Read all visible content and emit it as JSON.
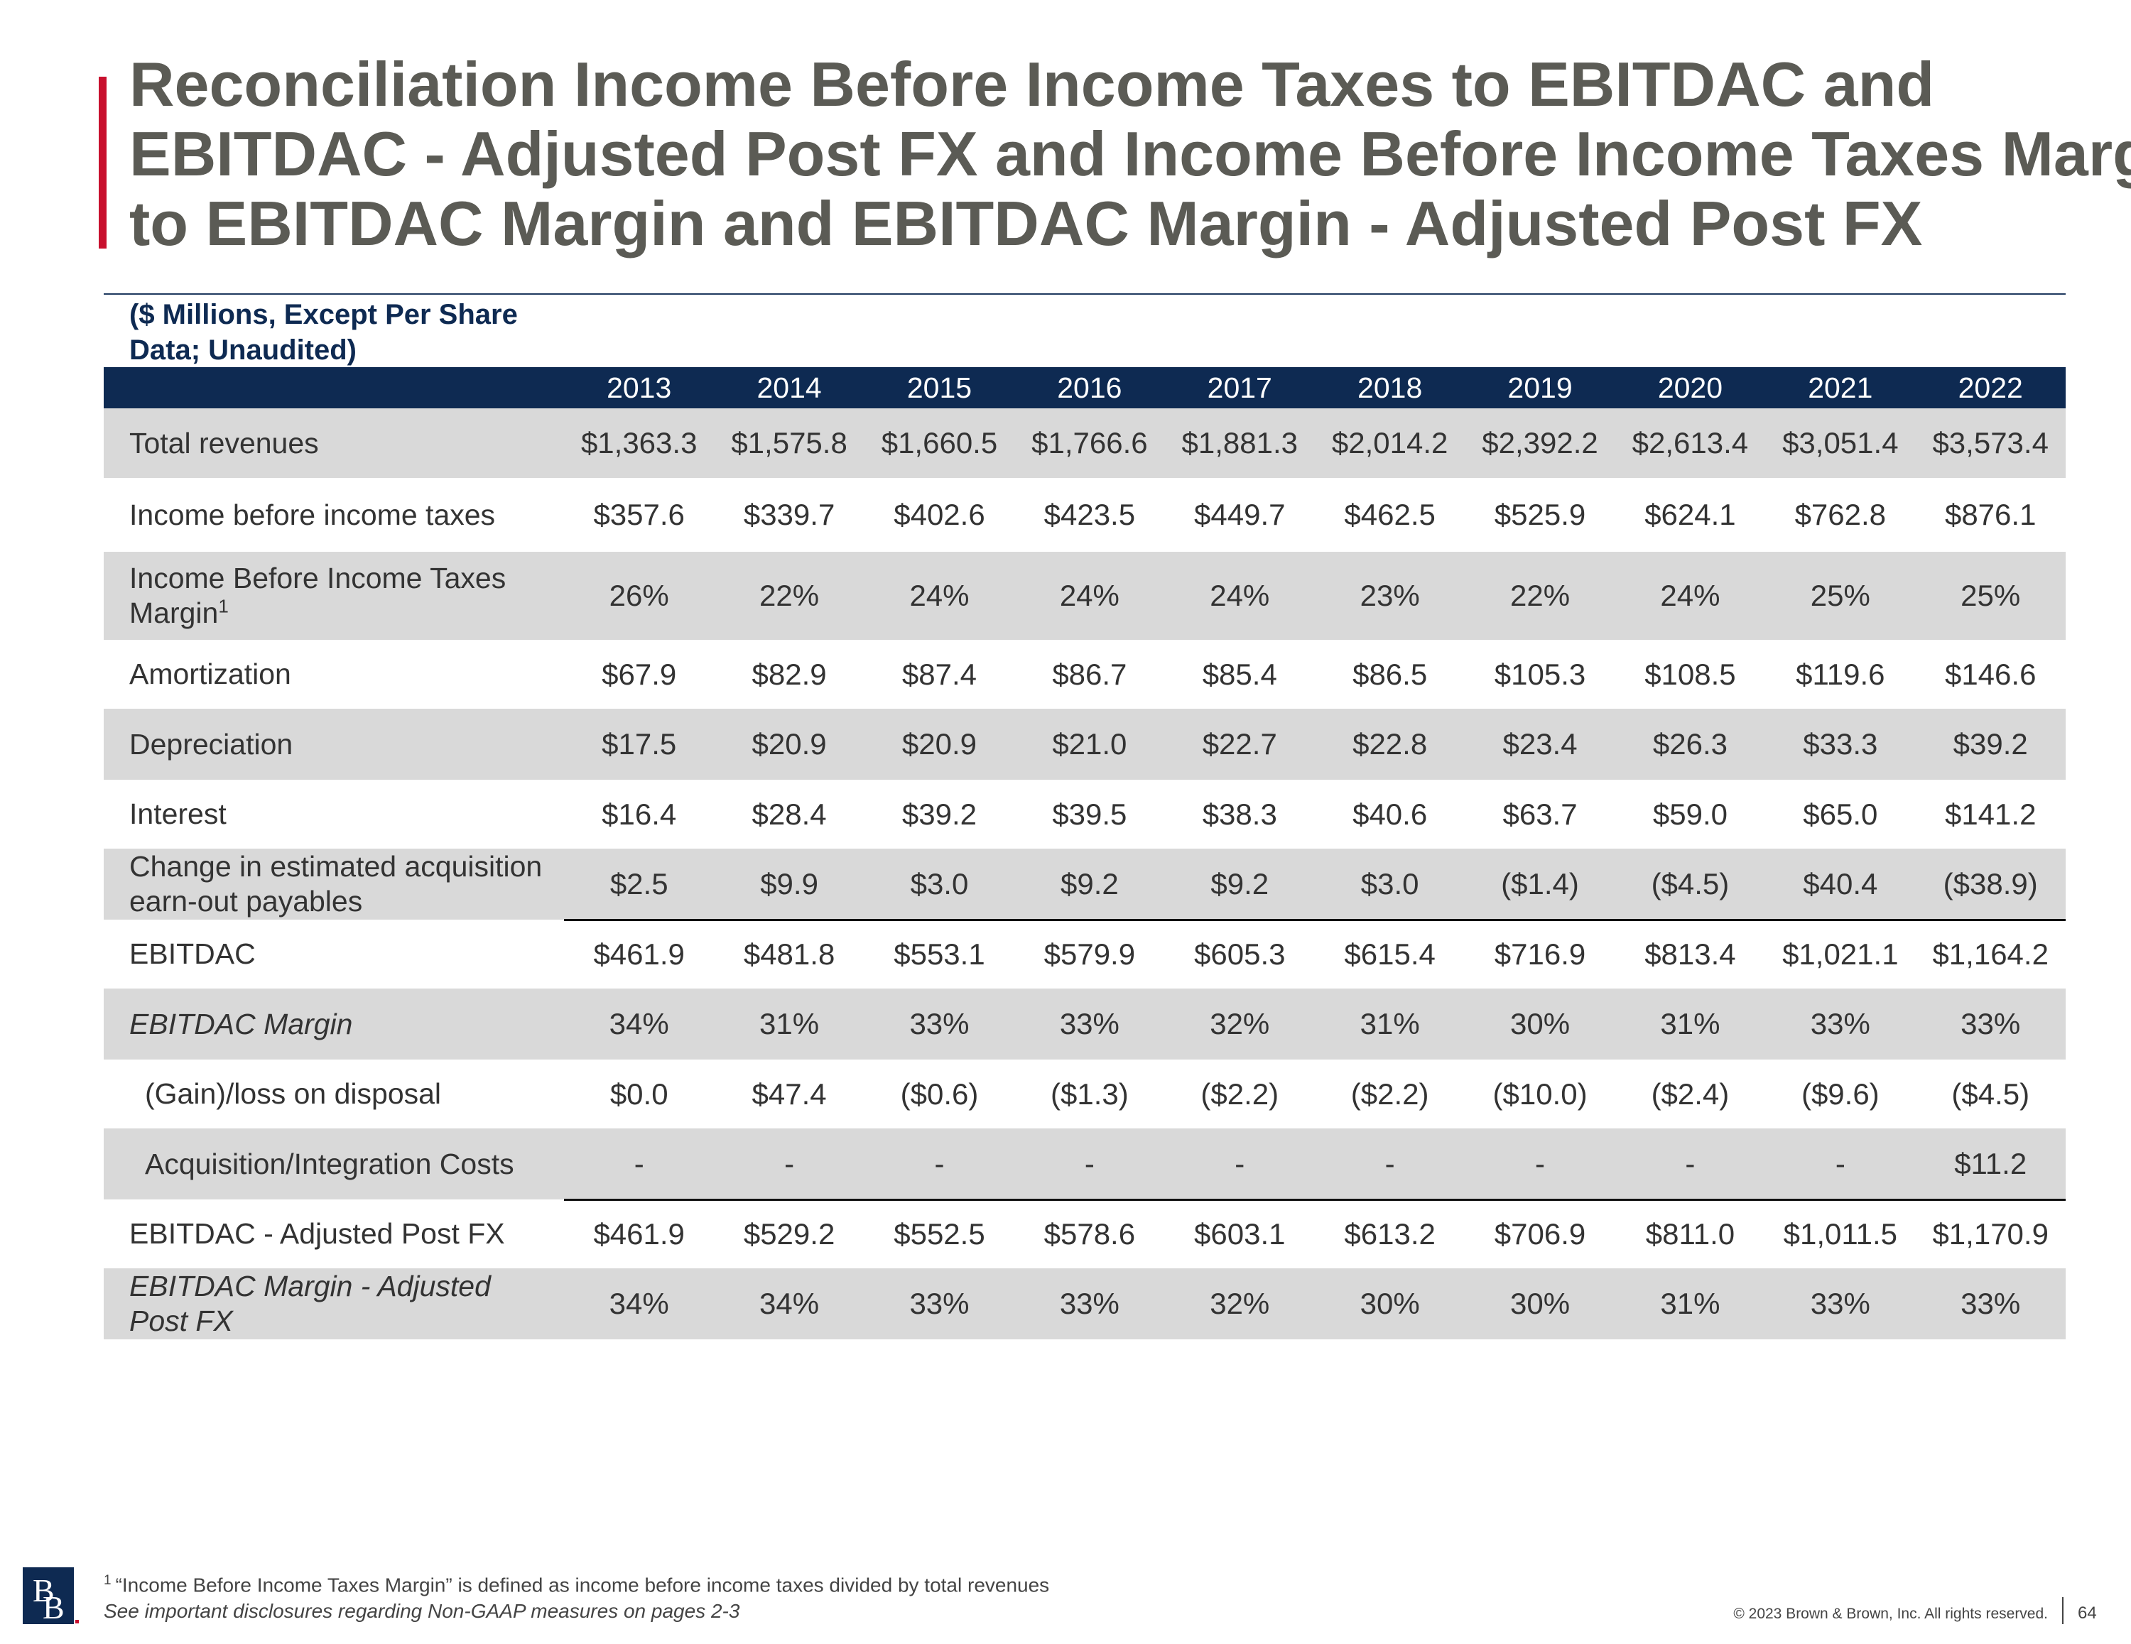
{
  "title": {
    "line1": "Reconciliation Income Before Income Taxes to EBITDAC and",
    "line2": "EBITDAC - Adjusted Post FX and Income Before Income Taxes Margin",
    "line3": "to EBITDAC Margin and EBITDAC Margin - Adjusted Post FX"
  },
  "units_note": {
    "line1": "($ Millions, Except Per Share",
    "line2": "Data; Unaudited)"
  },
  "table": {
    "years": [
      "2013",
      "2014",
      "2015",
      "2016",
      "2017",
      "2018",
      "2019",
      "2020",
      "2021",
      "2022"
    ],
    "rows": [
      {
        "label": "Total revenues",
        "values": [
          "$1,363.3",
          "$1,575.8",
          "$1,660.5",
          "$1,766.6",
          "$1,881.3",
          "$2,014.2",
          "$2,392.2",
          "$2,613.4",
          "$3,051.4",
          "$3,573.4"
        ]
      },
      {
        "label": "Income before income taxes",
        "values": [
          "$357.6",
          "$339.7",
          "$402.6",
          "$423.5",
          "$449.7",
          "$462.5",
          "$525.9",
          "$624.1",
          "$762.8",
          "$876.1"
        ]
      },
      {
        "label_line1": "Income Before Income Taxes",
        "label_line2": "Margin",
        "label_sup": "1",
        "values": [
          "26%",
          "22%",
          "24%",
          "24%",
          "24%",
          "23%",
          "22%",
          "24%",
          "25%",
          "25%"
        ]
      },
      {
        "label": "Amortization",
        "values": [
          "$67.9",
          "$82.9",
          "$87.4",
          "$86.7",
          "$85.4",
          "$86.5",
          "$105.3",
          "$108.5",
          "$119.6",
          "$146.6"
        ]
      },
      {
        "label": "Depreciation",
        "values": [
          "$17.5",
          "$20.9",
          "$20.9",
          "$21.0",
          "$22.7",
          "$22.8",
          "$23.4",
          "$26.3",
          "$33.3",
          "$39.2"
        ]
      },
      {
        "label": "Interest",
        "values": [
          "$16.4",
          "$28.4",
          "$39.2",
          "$39.5",
          "$38.3",
          "$40.6",
          "$63.7",
          "$59.0",
          "$65.0",
          "$141.2"
        ]
      },
      {
        "label_line1": "Change in estimated acquisition",
        "label_line2": "earn-out payables",
        "values": [
          "$2.5",
          "$9.9",
          "$3.0",
          "$9.2",
          "$9.2",
          "$3.0",
          "($1.4)",
          "($4.5)",
          "$40.4",
          "($38.9)"
        ]
      },
      {
        "label": "EBITDAC",
        "values": [
          "$461.9",
          "$481.8",
          "$553.1",
          "$579.9",
          "$605.3",
          "$615.4",
          "$716.9",
          "$813.4",
          "$1,021.1",
          "$1,164.2"
        ]
      },
      {
        "label": "EBITDAC Margin",
        "values": [
          "34%",
          "31%",
          "33%",
          "33%",
          "32%",
          "31%",
          "30%",
          "31%",
          "33%",
          "33%"
        ]
      },
      {
        "label": "(Gain)/loss on disposal",
        "values": [
          "$0.0",
          "$47.4",
          "($0.6)",
          "($1.3)",
          "($2.2)",
          "($2.2)",
          "($10.0)",
          "($2.4)",
          "($9.6)",
          "($4.5)"
        ]
      },
      {
        "label": "Acquisition/Integration Costs",
        "values": [
          "-",
          "-",
          "-",
          "-",
          "-",
          "-",
          "-",
          "-",
          "-",
          "$11.2"
        ]
      },
      {
        "label": "EBITDAC - Adjusted Post FX",
        "values": [
          "$461.9",
          "$529.2",
          "$552.5",
          "$578.6",
          "$603.1",
          "$613.2",
          "$706.9",
          "$811.0",
          "$1,011.5",
          "$1,170.9"
        ]
      },
      {
        "label_line1": "EBITDAC Margin - Adjusted",
        "label_line2": "Post FX",
        "values": [
          "34%",
          "34%",
          "33%",
          "33%",
          "32%",
          "30%",
          "30%",
          "31%",
          "33%",
          "33%"
        ]
      }
    ]
  },
  "footer": {
    "footnote_number": "1",
    "footnote": "“Income Before Income Taxes Margin” is defined as income before income taxes divided by total revenues",
    "disclosure": "See important disclosures regarding Non-GAAP measures on pages 2-3",
    "logo_text": "BB",
    "copyright": "© 2023 Brown & Brown, Inc. All rights reserved.",
    "page_number": "64"
  },
  "colors": {
    "accent": "#c8102e",
    "navy": "#0e2a52",
    "title_gray": "#5b5b55",
    "row_shade": "#d9d9d9"
  }
}
